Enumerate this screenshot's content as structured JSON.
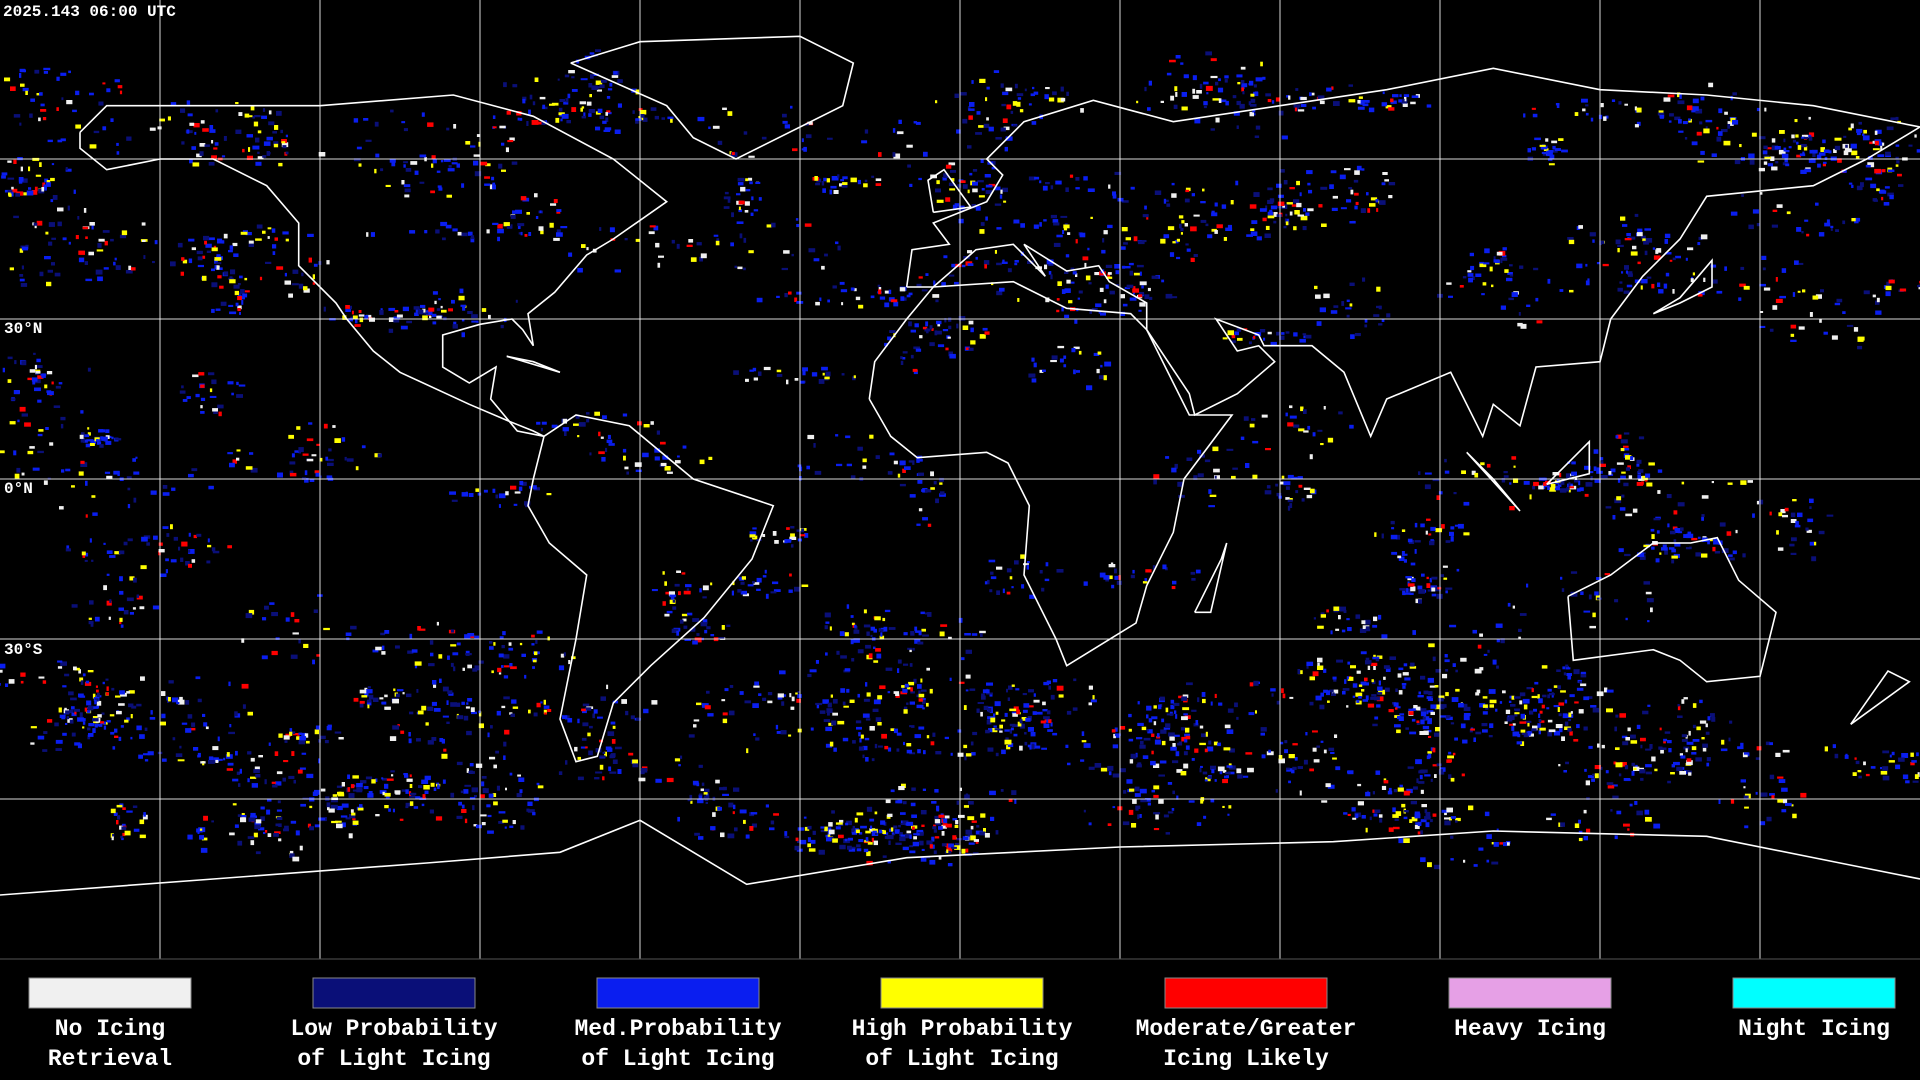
{
  "timestamp": "2025.143 06:00 UTC",
  "latitude_labels": [
    "30°N",
    "0°N",
    "30°S"
  ],
  "legend": [
    {
      "label": [
        "No Icing",
        "Retrieval"
      ],
      "color": "#f0f0f0"
    },
    {
      "label": [
        "Low Probability",
        "of Light Icing"
      ],
      "color": "#0a0f78"
    },
    {
      "label": [
        "Med.Probability",
        "of Light Icing"
      ],
      "color": "#0a1ef0"
    },
    {
      "label": [
        "High Probability",
        "of Light Icing"
      ],
      "color": "#ffff00"
    },
    {
      "label": [
        "Moderate/Greater",
        "Icing Likely"
      ],
      "color": "#ff0000"
    },
    {
      "label": [
        "Heavy Icing"
      ],
      "color": "#e6a0e6"
    },
    {
      "label": [
        "Night Icing"
      ],
      "color": "#00ffff"
    }
  ]
}
